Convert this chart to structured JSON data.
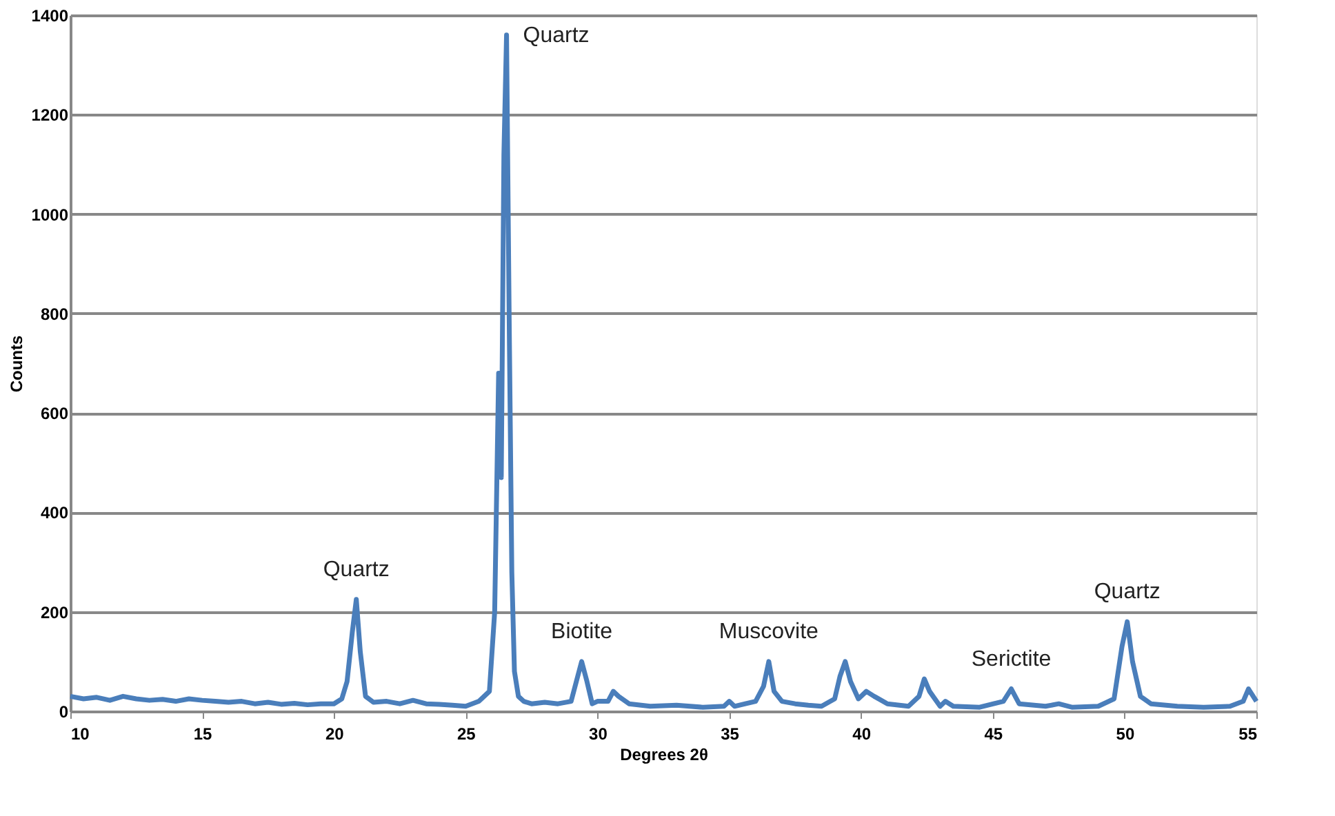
{
  "chart_data": {
    "type": "line",
    "xlabel": "Degrees 2θ",
    "ylabel": "Counts",
    "xlim": [
      10,
      55
    ],
    "xticks": [
      10,
      15,
      20,
      25,
      30,
      35,
      40,
      45,
      50,
      55
    ],
    "ylim": [
      0,
      1400
    ],
    "yticks": [
      0,
      200,
      400,
      600,
      800,
      1000,
      1200,
      1400
    ],
    "grid": "y",
    "marker": "none",
    "line_style": "solid",
    "series": [
      {
        "color": "#4a7ebb",
        "x": [
          10,
          10.5,
          11,
          11.5,
          12,
          12.5,
          13,
          13.5,
          14,
          14.5,
          15,
          15.5,
          16,
          16.5,
          17,
          17.5,
          18,
          18.5,
          19,
          19.5,
          20,
          20.3,
          20.5,
          20.7,
          20.85,
          21,
          21.2,
          21.5,
          22,
          22.5,
          23,
          23.5,
          24,
          24.5,
          25,
          25.5,
          25.9,
          26.1,
          26.25,
          26.35,
          26.45,
          26.55,
          26.65,
          26.75,
          26.85,
          27,
          27.2,
          27.5,
          28,
          28.5,
          29,
          29.2,
          29.4,
          29.6,
          29.8,
          30,
          30.4,
          30.6,
          30.8,
          31.2,
          32,
          33,
          34,
          34.8,
          35,
          35.2,
          36,
          36.3,
          36.5,
          36.7,
          37,
          37.5,
          38,
          38.5,
          39,
          39.2,
          39.4,
          39.6,
          39.9,
          40.2,
          40.5,
          41,
          41.8,
          42.2,
          42.4,
          42.6,
          43,
          43.2,
          43.5,
          44.5,
          45.4,
          45.7,
          46,
          47,
          47.5,
          48,
          49,
          49.6,
          49.9,
          50.1,
          50.3,
          50.6,
          51,
          52,
          53,
          54,
          54.5,
          54.7,
          55
        ],
        "values": [
          30,
          25,
          28,
          22,
          30,
          25,
          22,
          24,
          20,
          25,
          22,
          20,
          18,
          20,
          15,
          18,
          14,
          16,
          13,
          15,
          15,
          25,
          60,
          160,
          225,
          120,
          30,
          18,
          20,
          15,
          22,
          15,
          14,
          12,
          10,
          20,
          40,
          200,
          680,
          470,
          1120,
          1360,
          790,
          280,
          80,
          30,
          20,
          15,
          18,
          15,
          20,
          60,
          100,
          60,
          15,
          20,
          20,
          40,
          30,
          15,
          10,
          12,
          8,
          10,
          20,
          10,
          20,
          50,
          100,
          40,
          20,
          15,
          12,
          10,
          25,
          70,
          100,
          60,
          25,
          40,
          30,
          15,
          10,
          30,
          65,
          40,
          10,
          20,
          10,
          8,
          20,
          45,
          15,
          10,
          15,
          8,
          10,
          25,
          130,
          180,
          100,
          30,
          15,
          10,
          8,
          10,
          20,
          45,
          20
        ]
      }
    ],
    "annotations": [
      {
        "text": "Quartz",
        "x": 20.85,
        "y": 225
      },
      {
        "text": "Quartz",
        "x": 26.55,
        "y": 1360
      },
      {
        "text": "Biotite",
        "x": 29.4,
        "y": 100
      },
      {
        "text": "Muscovite",
        "x": 36.5,
        "y": 100
      },
      {
        "text": "Serictite",
        "x": 45.7,
        "y": 45
      },
      {
        "text": "Quartz",
        "x": 50.1,
        "y": 180
      }
    ]
  }
}
